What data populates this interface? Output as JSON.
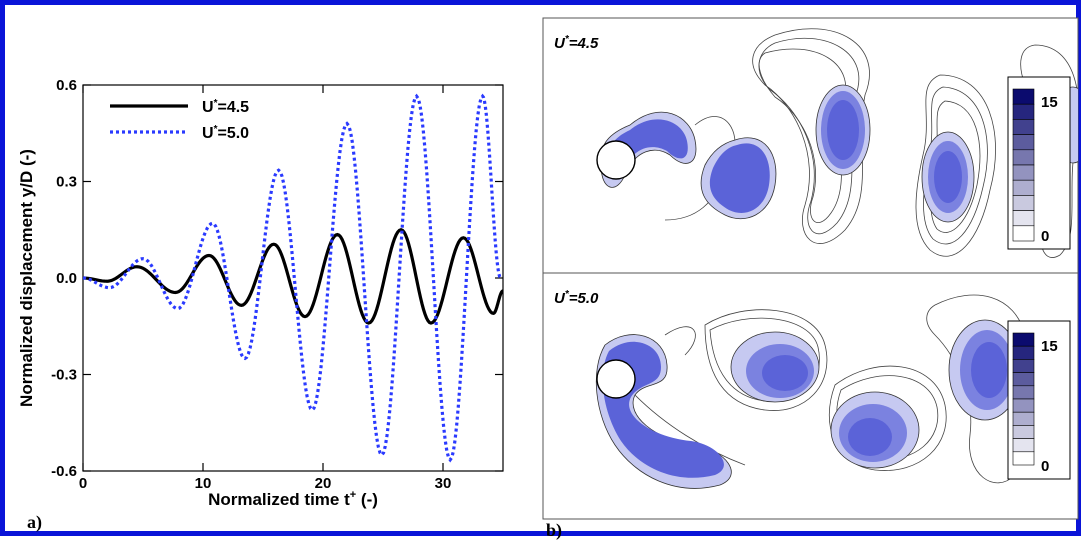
{
  "chart_data": [
    {
      "panel": "a)",
      "type": "line",
      "xlabel": "Normalized time t+ (-)",
      "ylabel": "Normalized displacement y/D (-)",
      "xlim": [
        0,
        35
      ],
      "ylim": [
        -0.6,
        0.6
      ],
      "xticks": [
        0,
        10,
        20,
        30
      ],
      "yticks": [
        -0.6,
        -0.3,
        0.0,
        0.3,
        0.6
      ],
      "xtick_labels": [
        "0",
        "10",
        "20",
        "30"
      ],
      "ytick_labels": [
        "-0.6",
        "-0.3",
        "0.0",
        "0.3",
        "0.6"
      ],
      "legend_position": "top-left",
      "series": [
        {
          "name": "U*=4.5",
          "style": "solid",
          "color": "#000000",
          "extrema": [
            {
              "x": 0,
              "y": 0.0
            },
            {
              "x": 2.0,
              "y": -0.01
            },
            {
              "x": 4.5,
              "y": 0.035
            },
            {
              "x": 7.7,
              "y": -0.045
            },
            {
              "x": 10.5,
              "y": 0.07
            },
            {
              "x": 13.2,
              "y": -0.085
            },
            {
              "x": 15.9,
              "y": 0.105
            },
            {
              "x": 18.5,
              "y": -0.12
            },
            {
              "x": 21.2,
              "y": 0.135
            },
            {
              "x": 23.8,
              "y": -0.14
            },
            {
              "x": 26.5,
              "y": 0.15
            },
            {
              "x": 29.0,
              "y": -0.14
            },
            {
              "x": 31.7,
              "y": 0.125
            },
            {
              "x": 34.2,
              "y": -0.11
            },
            {
              "x": 35.0,
              "y": -0.04
            }
          ]
        },
        {
          "name": "U*=5.0",
          "style": "dotted",
          "color": "#2a3aff",
          "extrema": [
            {
              "x": 0,
              "y": 0.0
            },
            {
              "x": 2.2,
              "y": -0.03
            },
            {
              "x": 5.0,
              "y": 0.06
            },
            {
              "x": 7.9,
              "y": -0.095
            },
            {
              "x": 10.8,
              "y": 0.17
            },
            {
              "x": 13.5,
              "y": -0.25
            },
            {
              "x": 16.3,
              "y": 0.335
            },
            {
              "x": 19.1,
              "y": -0.41
            },
            {
              "x": 22.0,
              "y": 0.48
            },
            {
              "x": 24.9,
              "y": -0.55
            },
            {
              "x": 27.8,
              "y": 0.565
            },
            {
              "x": 30.6,
              "y": -0.565
            },
            {
              "x": 33.3,
              "y": 0.565
            },
            {
              "x": 34.8,
              "y": 0.0
            }
          ]
        }
      ]
    },
    {
      "panel": "b)",
      "type": "heatmap",
      "subplots": [
        {
          "title": "U*=4.5",
          "colorbar": {
            "min_label": "0",
            "max_label": "15",
            "levels": 10
          }
        },
        {
          "title": "U*=5.0",
          "colorbar": {
            "min_label": "0",
            "max_label": "15",
            "levels": 10
          }
        }
      ],
      "colormap": {
        "low": "#ffffff",
        "high": "#0b0b6e",
        "vortex_fill": "#5b63d8"
      }
    }
  ],
  "labels": {
    "panel_a": "a)",
    "panel_b": "b)",
    "sup_plus": "+",
    "sup_star": "*"
  }
}
